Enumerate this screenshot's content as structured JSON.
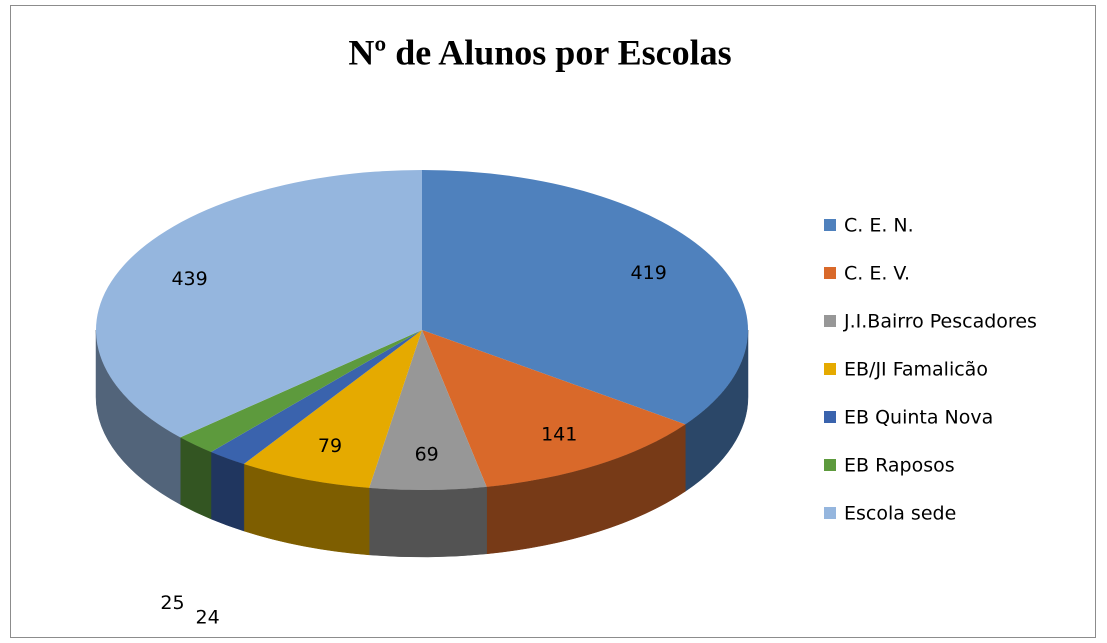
{
  "chart_data": {
    "type": "pie3d",
    "title": "Nº de Alunos por Escolas",
    "categories": [
      "C. E. N.",
      "C. E. V.",
      "J.I.Bairro Pescadores",
      "EB/JI Famalicão",
      "EB Quinta Nova",
      "EB Raposos",
      "Escola sede"
    ],
    "values": [
      419,
      141,
      69,
      79,
      24,
      25,
      439
    ],
    "colors": [
      "#4f81bd",
      "#d9692a",
      "#979797",
      "#e5aa00",
      "#3a63ad",
      "#5d9a3d",
      "#95b6de"
    ],
    "legend": "right"
  }
}
